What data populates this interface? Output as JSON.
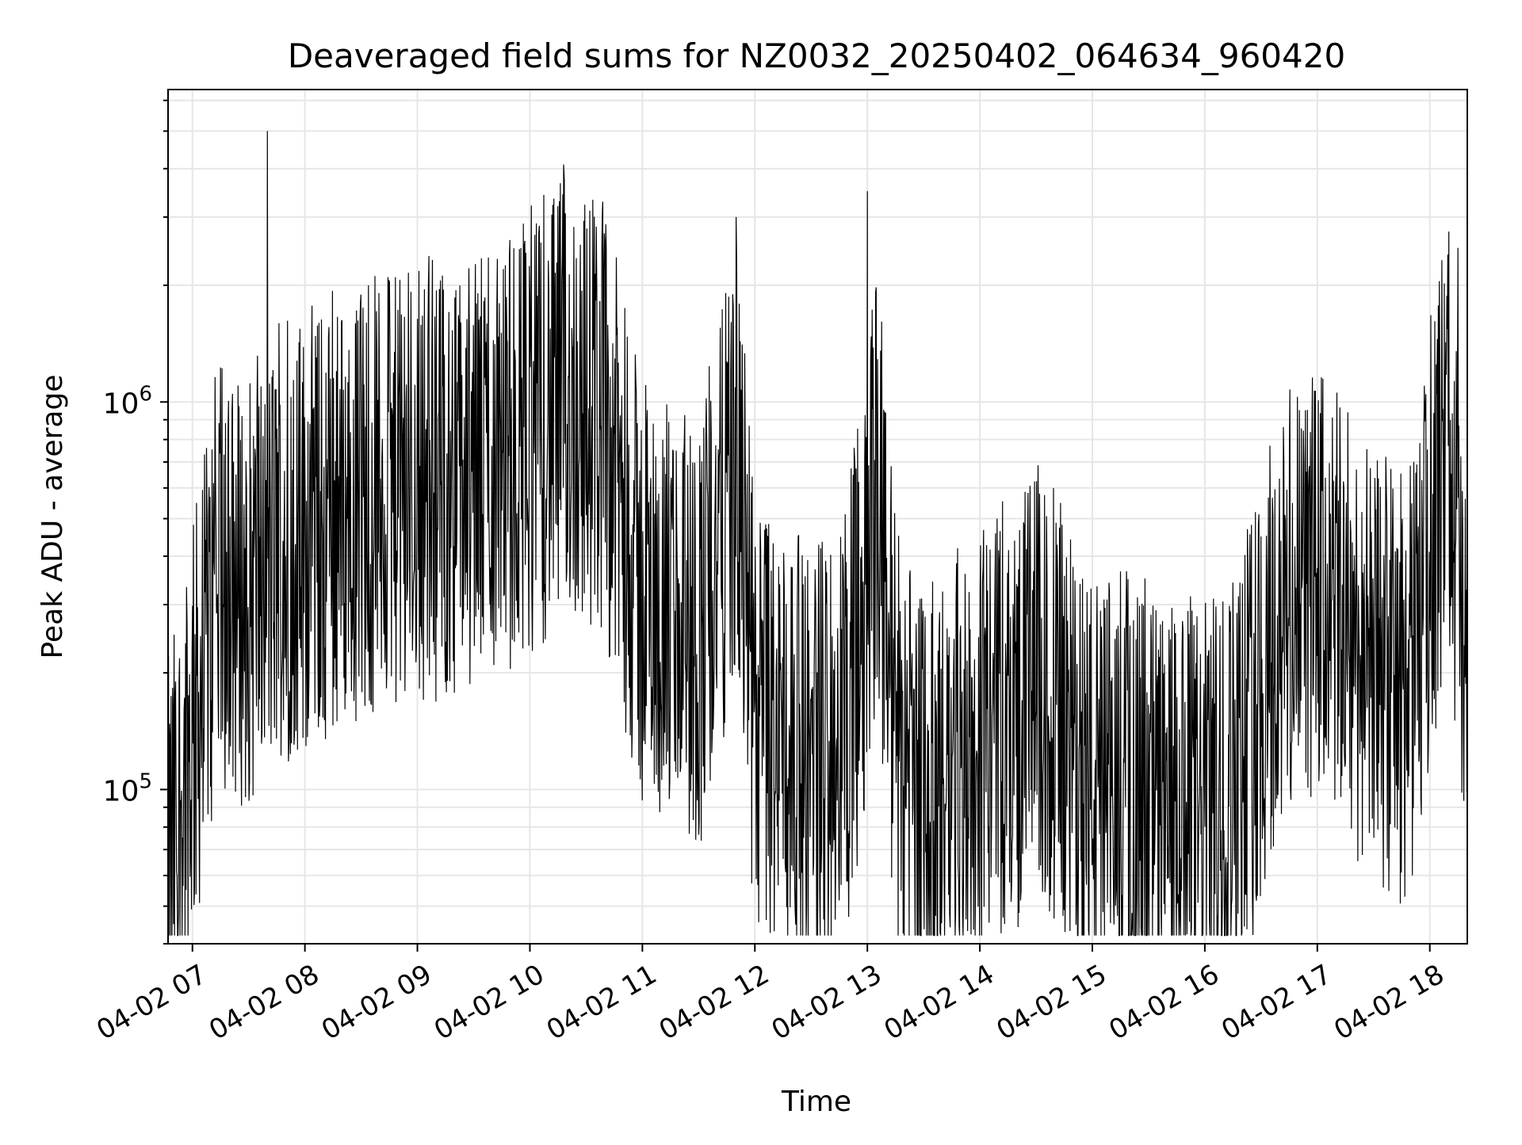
{
  "chart_data": {
    "type": "line",
    "title": "Deaveraged field sums for NZ0032_20250402_064634_960420",
    "xlabel": "Time",
    "ylabel": "Peak ADU - average",
    "y_scale": "log",
    "ylim": [
      40000,
      6400000
    ],
    "xlim": [
      "2025-04-02 06:47",
      "2025-04-02 18:20"
    ],
    "x_tick_labels": [
      "04-02 07",
      "04-02 08",
      "04-02 09",
      "04-02 10",
      "04-02 11",
      "04-02 12",
      "04-02 13",
      "04-02 14",
      "04-02 15",
      "04-02 16",
      "04-02 17",
      "04-02 18"
    ],
    "x_ticks": [
      "2025-04-02 07:00",
      "2025-04-02 08:00",
      "2025-04-02 09:00",
      "2025-04-02 10:00",
      "2025-04-02 11:00",
      "2025-04-02 12:00",
      "2025-04-02 13:00",
      "2025-04-02 14:00",
      "2025-04-02 15:00",
      "2025-04-02 16:00",
      "2025-04-02 17:00",
      "2025-04-02 18:00"
    ],
    "y_ticks": [
      {
        "value": 100000,
        "base": "10",
        "exp": "5"
      },
      {
        "value": 1000000,
        "base": "10",
        "exp": "6"
      }
    ],
    "grid": true,
    "line_color": "#000000",
    "series": [
      {
        "x": [
          "2025-04-02 06:47",
          "2025-04-02 07:15",
          "2025-04-02 07:30",
          "2025-04-02 07:45",
          "2025-04-02 08:00",
          "2025-04-02 08:30",
          "2025-04-02 09:00",
          "2025-04-02 09:30",
          "2025-04-02 10:00",
          "2025-04-02 10:20",
          "2025-04-02 10:40",
          "2025-04-02 11:00",
          "2025-04-02 11:30",
          "2025-04-02 11:50",
          "2025-04-02 12:00",
          "2025-04-02 12:30",
          "2025-04-02 12:50",
          "2025-04-02 13:05",
          "2025-04-02 13:15",
          "2025-04-02 13:30",
          "2025-04-02 14:00",
          "2025-04-02 14:30",
          "2025-04-02 15:00",
          "2025-04-02 15:30",
          "2025-04-02 15:50",
          "2025-04-02 16:10",
          "2025-04-02 16:40",
          "2025-04-02 17:00",
          "2025-04-02 17:30",
          "2025-04-02 17:50",
          "2025-04-02 18:10",
          "2025-04-02 18:20"
        ],
        "values": [
          60000,
          350000,
          320000,
          400000,
          450000,
          550000,
          600000,
          650000,
          800000,
          1000000,
          900000,
          300000,
          250000,
          700000,
          150000,
          120000,
          150000,
          600000,
          150000,
          90000,
          120000,
          180000,
          100000,
          90000,
          80000,
          90000,
          250000,
          350000,
          200000,
          180000,
          900000,
          150000
        ],
        "peaks": [
          {
            "x": "2025-04-02 07:40",
            "value": 5000000
          },
          {
            "x": "2025-04-02 10:18",
            "value": 4100000
          },
          {
            "x": "2025-04-02 13:00",
            "value": 3500000
          },
          {
            "x": "2025-04-02 11:50",
            "value": 3000000
          },
          {
            "x": "2025-04-02 18:15",
            "value": 2500000
          }
        ]
      }
    ]
  }
}
